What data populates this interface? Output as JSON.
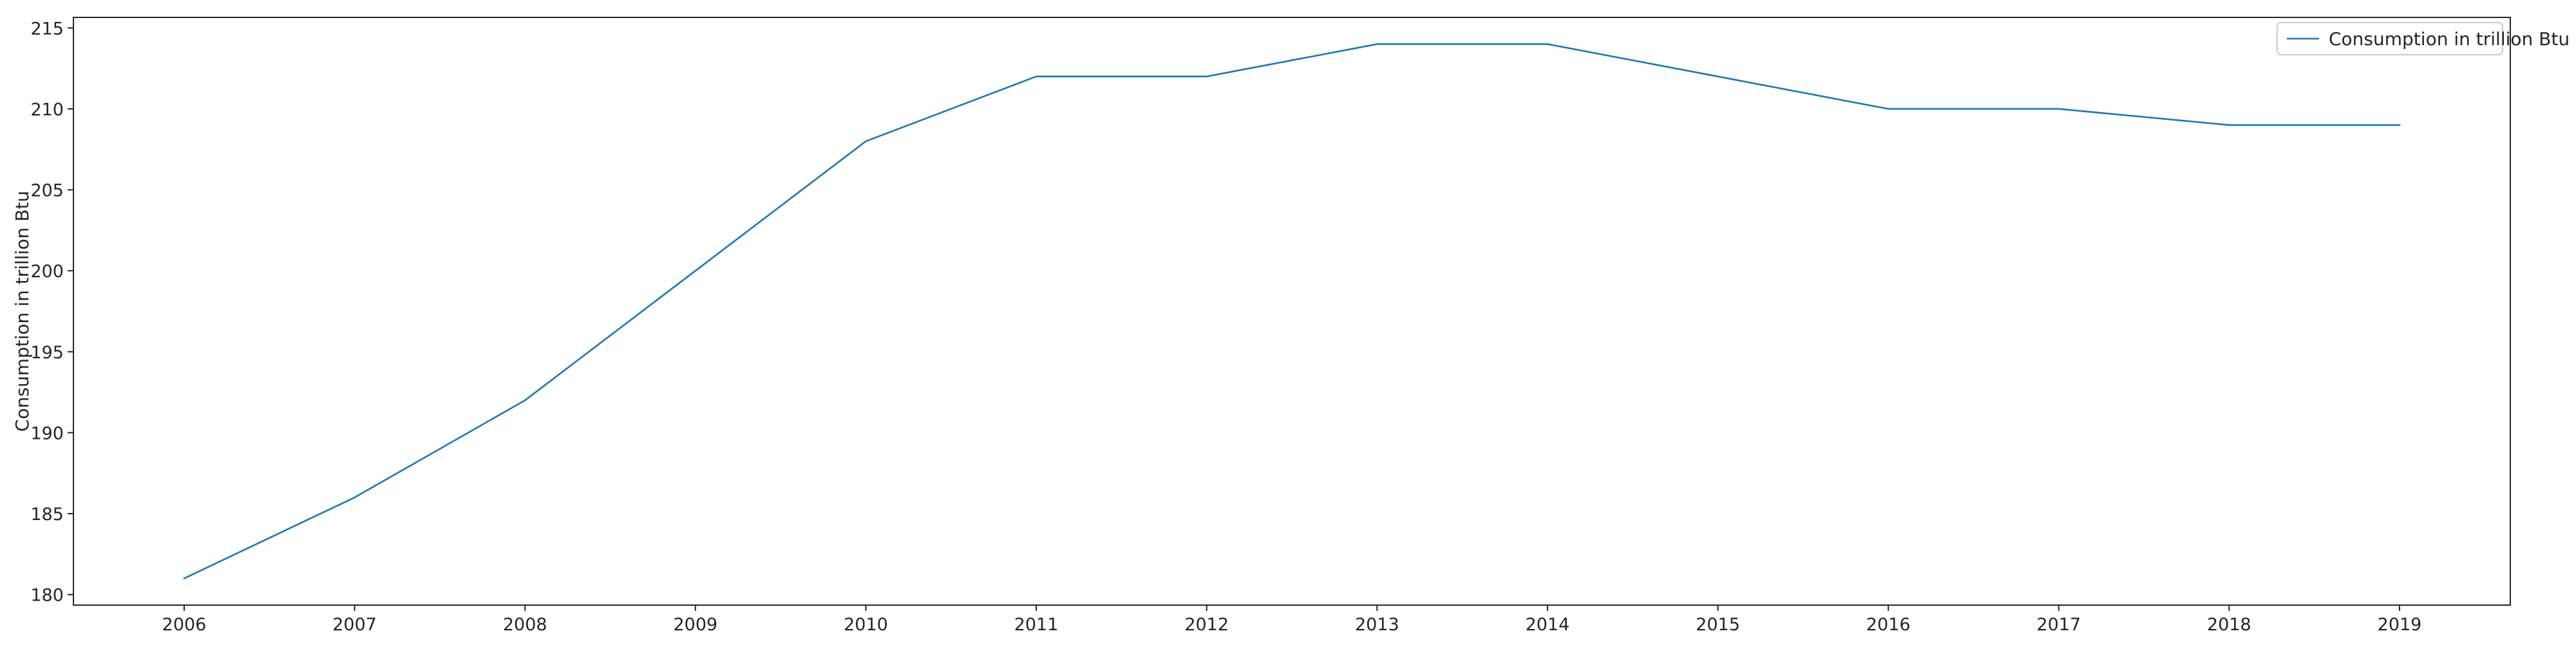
{
  "chart_data": {
    "type": "line",
    "title": "",
    "xlabel": "",
    "ylabel": "Consumption in trillion Btu",
    "x": [
      2006,
      2007,
      2008,
      2009,
      2010,
      2011,
      2012,
      2013,
      2014,
      2015,
      2016,
      2017,
      2018,
      2019
    ],
    "series": [
      {
        "name": "Consumption in trillion Btu",
        "values": [
          181,
          186,
          192,
          200,
          208,
          212,
          212,
          214,
          214,
          212,
          210,
          210,
          209,
          209
        ],
        "color": "#1f77b4"
      }
    ],
    "xticks": [
      "2006",
      "2007",
      "2008",
      "2009",
      "2010",
      "2011",
      "2012",
      "2013",
      "2014",
      "2015",
      "2016",
      "2017",
      "2018",
      "2019"
    ],
    "yticks": [
      "180",
      "185",
      "190",
      "195",
      "200",
      "205",
      "210",
      "215"
    ],
    "xlim": [
      2005.35,
      2019.65
    ],
    "ylim": [
      179.35,
      215.65
    ],
    "grid": false,
    "legend_position": "top-right"
  }
}
